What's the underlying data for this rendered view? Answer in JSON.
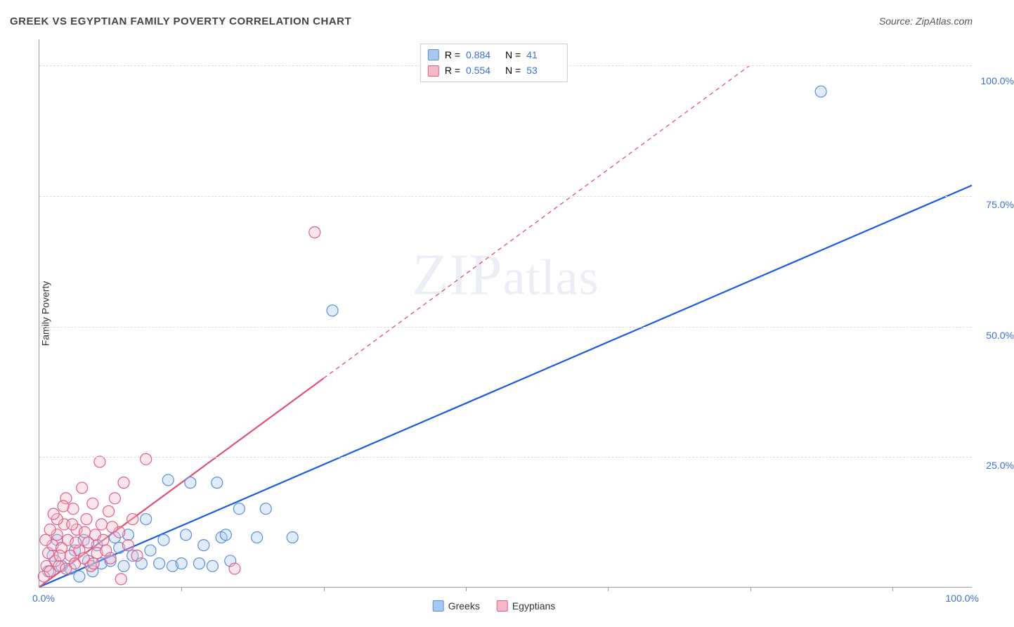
{
  "title": "GREEK VS EGYPTIAN FAMILY POVERTY CORRELATION CHART",
  "source": "Source: ZipAtlas.com",
  "watermark": "ZIPatlas",
  "y_axis_title": "Family Poverty",
  "x_origin_label": "0.0%",
  "x_max_label": "100.0%",
  "chart": {
    "type": "scatter",
    "xlim": [
      0,
      105
    ],
    "ylim": [
      0,
      105
    ],
    "ytick_positions": [
      25,
      50,
      75,
      100
    ],
    "ytick_labels": [
      "25.0%",
      "50.0%",
      "75.0%",
      "100.0%"
    ],
    "xtick_positions": [
      16,
      32,
      48,
      64,
      80,
      96
    ],
    "grid_color": "#dddddd",
    "axis_color": "#999999",
    "background_color": "#ffffff",
    "label_color": "#3b6fd8",
    "marker_radius": 8,
    "marker_radius_small": 6,
    "series": [
      {
        "name": "Greeks",
        "fill": "#a9c8f0",
        "stroke": "#5a8fd6",
        "regression_color": "#1a5ce0",
        "regression_solid": {
          "x1": 0,
          "y1": 0,
          "x2": 105,
          "y2": 77
        },
        "points": [
          {
            "x": 1.0,
            "y": 3.0
          },
          {
            "x": 1.5,
            "y": 6.0
          },
          {
            "x": 2.5,
            "y": 4.0
          },
          {
            "x": 2.0,
            "y": 9.0
          },
          {
            "x": 3.5,
            "y": 3.5
          },
          {
            "x": 4.0,
            "y": 7.0
          },
          {
            "x": 4.5,
            "y": 2.0
          },
          {
            "x": 5.0,
            "y": 9.0
          },
          {
            "x": 5.5,
            "y": 5.0
          },
          {
            "x": 6.0,
            "y": 3.0
          },
          {
            "x": 6.5,
            "y": 8.0
          },
          {
            "x": 7.0,
            "y": 4.5
          },
          {
            "x": 8.0,
            "y": 5.0
          },
          {
            "x": 8.5,
            "y": 9.5
          },
          {
            "x": 9.0,
            "y": 7.5
          },
          {
            "x": 9.5,
            "y": 4.0
          },
          {
            "x": 10.0,
            "y": 10.0
          },
          {
            "x": 10.5,
            "y": 6.0
          },
          {
            "x": 11.5,
            "y": 4.5
          },
          {
            "x": 12.0,
            "y": 13.0
          },
          {
            "x": 12.5,
            "y": 7.0
          },
          {
            "x": 13.5,
            "y": 4.5
          },
          {
            "x": 14.0,
            "y": 9.0
          },
          {
            "x": 14.5,
            "y": 20.5
          },
          {
            "x": 15.0,
            "y": 4.0
          },
          {
            "x": 16.0,
            "y": 4.5
          },
          {
            "x": 16.5,
            "y": 10.0
          },
          {
            "x": 17.0,
            "y": 20.0
          },
          {
            "x": 18.0,
            "y": 4.5
          },
          {
            "x": 18.5,
            "y": 8.0
          },
          {
            "x": 19.5,
            "y": 4.0
          },
          {
            "x": 20.5,
            "y": 9.5
          },
          {
            "x": 20.0,
            "y": 20.0
          },
          {
            "x": 21.5,
            "y": 5.0
          },
          {
            "x": 21.0,
            "y": 10.0
          },
          {
            "x": 22.5,
            "y": 15.0
          },
          {
            "x": 24.5,
            "y": 9.5
          },
          {
            "x": 25.5,
            "y": 15.0
          },
          {
            "x": 28.5,
            "y": 9.5
          },
          {
            "x": 33.0,
            "y": 53.0
          },
          {
            "x": 88.0,
            "y": 95.0
          }
        ]
      },
      {
        "name": "Egyptians",
        "fill": "#f3b9c6",
        "stroke": "#e05f86",
        "regression_color": "#e05273",
        "regression_solid": {
          "x1": 0,
          "y1": 0,
          "x2": 32,
          "y2": 40
        },
        "regression_dashed": {
          "x1": 32,
          "y1": 40,
          "x2": 80,
          "y2": 100
        },
        "points": [
          {
            "x": 0.5,
            "y": 2.0
          },
          {
            "x": 0.8,
            "y": 4.0
          },
          {
            "x": 1.0,
            "y": 6.5
          },
          {
            "x": 1.2,
            "y": 3.0
          },
          {
            "x": 1.5,
            "y": 8.0
          },
          {
            "x": 1.8,
            "y": 5.0
          },
          {
            "x": 2.0,
            "y": 10.0
          },
          {
            "x": 2.2,
            "y": 4.0
          },
          {
            "x": 2.5,
            "y": 7.5
          },
          {
            "x": 2.8,
            "y": 12.0
          },
          {
            "x": 3.0,
            "y": 3.5
          },
          {
            "x": 3.2,
            "y": 9.0
          },
          {
            "x": 3.5,
            "y": 6.0
          },
          {
            "x": 3.8,
            "y": 15.0
          },
          {
            "x": 4.0,
            "y": 4.5
          },
          {
            "x": 4.2,
            "y": 11.0
          },
          {
            "x": 4.5,
            "y": 7.0
          },
          {
            "x": 4.8,
            "y": 19.0
          },
          {
            "x": 5.0,
            "y": 5.5
          },
          {
            "x": 5.3,
            "y": 13.0
          },
          {
            "x": 5.5,
            "y": 8.5
          },
          {
            "x": 5.8,
            "y": 4.0
          },
          {
            "x": 6.0,
            "y": 16.0
          },
          {
            "x": 6.3,
            "y": 10.0
          },
          {
            "x": 6.5,
            "y": 6.5
          },
          {
            "x": 6.8,
            "y": 24.0
          },
          {
            "x": 7.0,
            "y": 12.0
          },
          {
            "x": 7.5,
            "y": 7.0
          },
          {
            "x": 7.8,
            "y": 14.5
          },
          {
            "x": 8.0,
            "y": 5.5
          },
          {
            "x": 8.5,
            "y": 17.0
          },
          {
            "x": 9.0,
            "y": 10.5
          },
          {
            "x": 9.5,
            "y": 20.0
          },
          {
            "x": 10.0,
            "y": 8.0
          },
          {
            "x": 10.5,
            "y": 13.0
          },
          {
            "x": 11.0,
            "y": 6.0
          },
          {
            "x": 12.0,
            "y": 24.5
          },
          {
            "x": 2.0,
            "y": 13.0
          },
          {
            "x": 3.0,
            "y": 17.0
          },
          {
            "x": 1.2,
            "y": 11.0
          },
          {
            "x": 1.6,
            "y": 14.0
          },
          {
            "x": 2.3,
            "y": 6.0
          },
          {
            "x": 4.1,
            "y": 8.5
          },
          {
            "x": 5.1,
            "y": 10.5
          },
          {
            "x": 6.1,
            "y": 4.5
          },
          {
            "x": 7.2,
            "y": 9.0
          },
          {
            "x": 8.2,
            "y": 11.5
          },
          {
            "x": 3.7,
            "y": 12.0
          },
          {
            "x": 2.7,
            "y": 15.5
          },
          {
            "x": 0.7,
            "y": 9.0
          },
          {
            "x": 9.2,
            "y": 1.5
          },
          {
            "x": 22.0,
            "y": 3.5
          },
          {
            "x": 31.0,
            "y": 68.0
          }
        ]
      }
    ]
  },
  "legend_top": {
    "rows": [
      {
        "swatch_fill": "#a9c8f0",
        "swatch_stroke": "#5a8fd6",
        "r_label": "R =",
        "r_value": "0.884",
        "n_label": "N =",
        "n_value": "41"
      },
      {
        "swatch_fill": "#f3b9c6",
        "swatch_stroke": "#e05f86",
        "r_label": "R =",
        "r_value": "0.554",
        "n_label": "N =",
        "n_value": "53"
      }
    ]
  },
  "legend_bottom": {
    "items": [
      {
        "swatch_fill": "#a9c8f0",
        "swatch_stroke": "#5a8fd6",
        "label": "Greeks"
      },
      {
        "swatch_fill": "#f3b9c6",
        "swatch_stroke": "#e05f86",
        "label": "Egyptians"
      }
    ]
  }
}
